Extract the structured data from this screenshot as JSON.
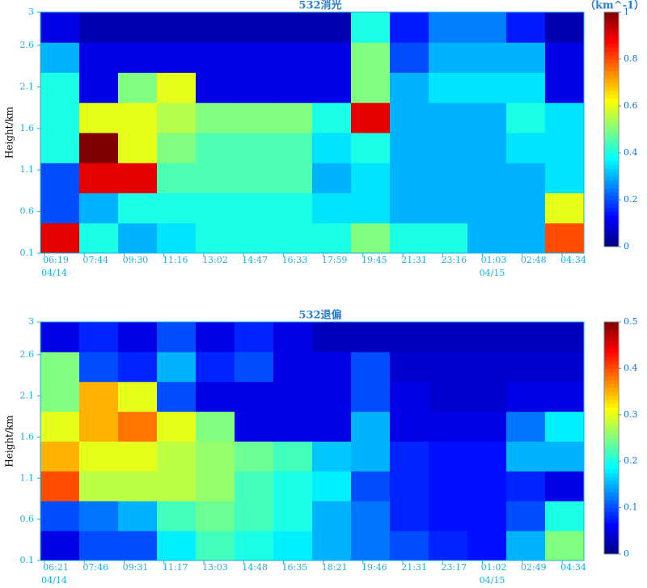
{
  "chart_data": [
    {
      "type": "heatmap",
      "title": "532消光",
      "unit_label": "（km^-1）",
      "ylabel": "Height/km",
      "colormap": "jet",
      "categories": [
        "06:19",
        "07:44",
        "09:30",
        "11:16",
        "13:02",
        "14:47",
        "16:33",
        "17:59",
        "19:45",
        "21:31",
        "23:16",
        "01:03",
        "02:48",
        "04:34"
      ],
      "date_labels": [
        "04/14",
        "04/15"
      ],
      "ylim": [
        0.1,
        3
      ],
      "yticks": [
        0.1,
        0.6,
        1.1,
        1.6,
        2.1,
        2.6,
        3
      ],
      "zlim": [
        0,
        1
      ],
      "zticks": [
        0,
        0.2,
        0.4,
        0.6,
        0.8,
        1
      ],
      "values": [
        [
          0.9,
          0.4,
          0.3,
          0.35,
          0.4,
          0.4,
          0.4,
          0.4,
          0.5,
          0.4,
          0.4,
          0.3,
          0.3,
          0.8
        ],
        [
          0.2,
          0.3,
          0.4,
          0.4,
          0.4,
          0.4,
          0.4,
          0.35,
          0.35,
          0.3,
          0.3,
          0.3,
          0.3,
          0.6
        ],
        [
          0.2,
          0.9,
          0.9,
          0.45,
          0.45,
          0.45,
          0.45,
          0.3,
          0.35,
          0.3,
          0.3,
          0.3,
          0.3,
          0.35
        ],
        [
          0.4,
          1,
          0.6,
          0.5,
          0.45,
          0.45,
          0.45,
          0.35,
          0.4,
          0.3,
          0.3,
          0.3,
          0.35,
          0.35
        ],
        [
          0.4,
          0.6,
          0.6,
          0.55,
          0.5,
          0.5,
          0.5,
          0.4,
          0.9,
          0.3,
          0.3,
          0.3,
          0.4,
          0.35
        ],
        [
          0.4,
          0.1,
          0.5,
          0.6,
          0.1,
          0.1,
          0.1,
          0.1,
          0.5,
          0.3,
          0.35,
          0.35,
          0.35,
          0.1
        ],
        [
          0.3,
          0.1,
          0.1,
          0.1,
          0.1,
          0.1,
          0.1,
          0.1,
          0.5,
          0.2,
          0.3,
          0.3,
          0.3,
          0.1
        ],
        [
          0.1,
          0.05,
          0.05,
          0.05,
          0.05,
          0.05,
          0.05,
          0.05,
          0.4,
          0.15,
          0.25,
          0.25,
          0.15,
          0.05
        ]
      ]
    },
    {
      "type": "heatmap",
      "title": "532退偏",
      "ylabel": "Height/km",
      "colormap": "jet",
      "categories": [
        "06:21",
        "07:46",
        "09:31",
        "11:17",
        "13:03",
        "14:48",
        "16:35",
        "18:21",
        "19:46",
        "21:31",
        "23:17",
        "01:02",
        "02:49",
        "04:34"
      ],
      "date_labels": [
        "04/14",
        "04/15"
      ],
      "ylim": [
        0.1,
        3
      ],
      "yticks": [
        0.1,
        0.6,
        1.1,
        1.6,
        2.1,
        2.6,
        3
      ],
      "zlim": [
        0,
        0.5
      ],
      "zticks": [
        0,
        0.1,
        0.2,
        0.3,
        0.4,
        0.5
      ],
      "values": [
        [
          0.05,
          0.1,
          0.1,
          0.18,
          0.22,
          0.2,
          0.18,
          0.15,
          0.12,
          0.1,
          0.08,
          0.07,
          0.15,
          0.25
        ],
        [
          0.1,
          0.12,
          0.15,
          0.22,
          0.24,
          0.22,
          0.2,
          0.15,
          0.12,
          0.08,
          0.07,
          0.07,
          0.1,
          0.2
        ],
        [
          0.4,
          0.28,
          0.28,
          0.28,
          0.26,
          0.22,
          0.2,
          0.18,
          0.1,
          0.08,
          0.07,
          0.07,
          0.08,
          0.05
        ],
        [
          0.35,
          0.3,
          0.3,
          0.28,
          0.26,
          0.24,
          0.22,
          0.16,
          0.15,
          0.08,
          0.07,
          0.07,
          0.15,
          0.15
        ],
        [
          0.3,
          0.35,
          0.38,
          0.3,
          0.25,
          0.05,
          0.05,
          0.05,
          0.15,
          0.05,
          0.05,
          0.05,
          0.12,
          0.18
        ],
        [
          0.25,
          0.35,
          0.3,
          0.1,
          0.05,
          0.05,
          0.05,
          0.05,
          0.1,
          0.05,
          0.04,
          0.04,
          0.05,
          0.05
        ],
        [
          0.25,
          0.1,
          0.08,
          0.15,
          0.08,
          0.1,
          0.05,
          0.05,
          0.1,
          0.04,
          0.04,
          0.04,
          0.04,
          0.04
        ],
        [
          0.05,
          0.08,
          0.05,
          0.1,
          0.05,
          0.08,
          0.05,
          0.03,
          0.03,
          0.03,
          0.03,
          0.03,
          0.03,
          0.03
        ]
      ]
    }
  ]
}
